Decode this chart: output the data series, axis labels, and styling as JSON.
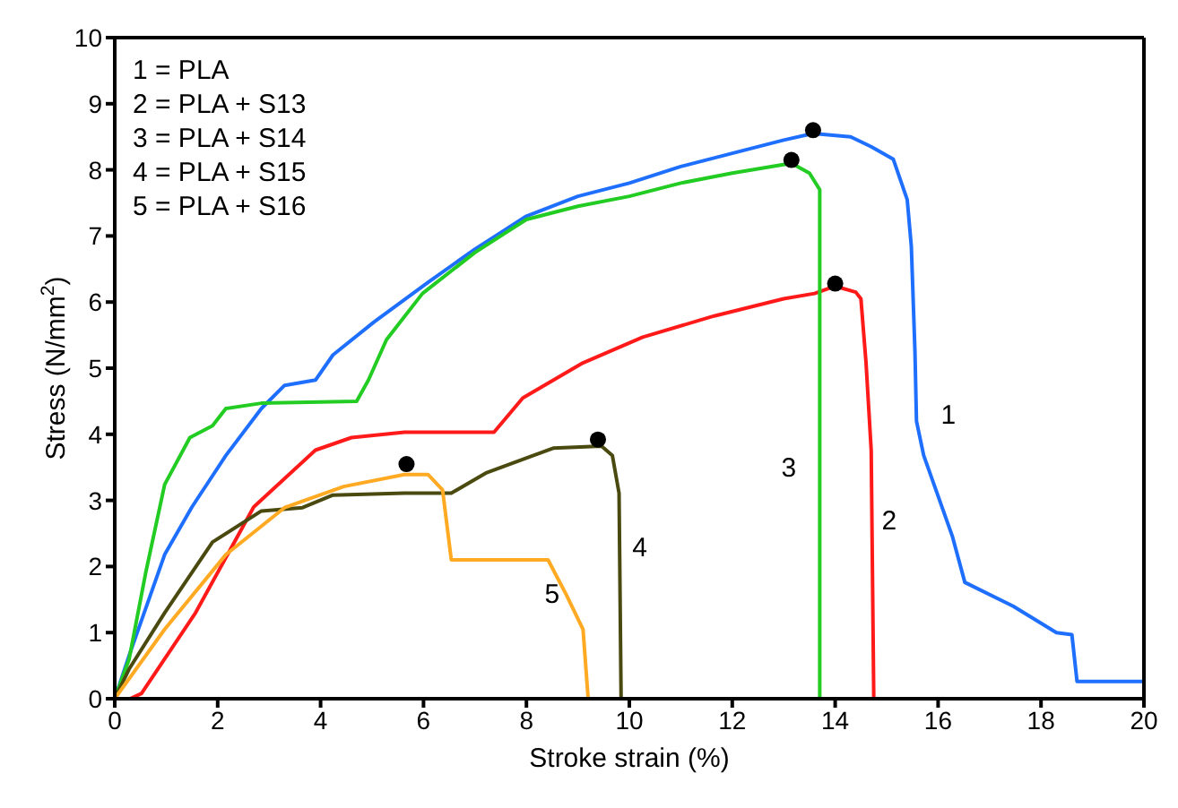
{
  "chart_data": {
    "type": "line",
    "xlabel": "Stroke strain (%)",
    "ylabel": "Stress (N/mm$^{2}$)",
    "xlim": [
      0,
      20
    ],
    "xticks": [
      0,
      2,
      4,
      6,
      8,
      10,
      12,
      14,
      16,
      18,
      20
    ],
    "ylim": [
      0,
      10
    ],
    "yticks": [
      0,
      1,
      2,
      3,
      4,
      5,
      6,
      7,
      8,
      9,
      10
    ],
    "grid": false,
    "marker": "none",
    "line_style": "solid",
    "annotations": [
      "1 = PLA",
      "2 = PLA + S13",
      "3 = PLA + S14",
      "4 = PLA + S15",
      "5 = PLA + S16"
    ],
    "series": [
      {
        "name": "1",
        "color": "#1f6fff",
        "x": [
          0,
          0.3,
          0.97,
          1.5,
          2.16,
          2.85,
          3.3,
          3.9,
          4.24,
          5.04,
          6.09,
          7,
          8,
          9,
          10,
          11,
          12,
          13,
          13.57,
          14.3,
          14.7,
          15.13,
          15.4,
          15.48,
          15.55,
          15.58,
          15.72,
          16.28,
          16.52,
          17.46,
          18.3,
          18.6,
          18.7,
          20
        ],
        "values": [
          0,
          0.7,
          2.18,
          2.9,
          3.68,
          4.39,
          4.74,
          4.82,
          5.2,
          5.7,
          6.3,
          6.8,
          7.3,
          7.6,
          7.8,
          8.05,
          8.25,
          8.45,
          8.55,
          8.5,
          8.35,
          8.16,
          7.55,
          6.84,
          5.26,
          4.2,
          3.68,
          2.45,
          1.76,
          1.4,
          1.0,
          0.97,
          0.26,
          0.26
        ]
      },
      {
        "name": "2",
        "color": "#ff1a1a",
        "x": [
          0.3,
          0.52,
          1.57,
          2.7,
          3.9,
          4.6,
          5.63,
          7.37,
          7.93,
          9.1,
          10.26,
          11.65,
          13,
          13.6,
          14,
          14.4,
          14.5,
          14.6,
          14.7,
          14.75
        ],
        "values": [
          0,
          0.08,
          1.3,
          2.9,
          3.76,
          3.95,
          4.03,
          4.03,
          4.55,
          5.08,
          5.47,
          5.79,
          6.05,
          6.13,
          6.24,
          6.15,
          6.05,
          5.08,
          3.76,
          0
        ]
      },
      {
        "name": "3",
        "color": "#22cc22",
        "x": [
          0,
          0.28,
          0.6,
          0.97,
          1.46,
          1.9,
          2.16,
          2.85,
          4.7,
          4.93,
          5.28,
          5.98,
          7,
          8,
          9,
          10,
          11,
          12,
          13.15,
          13.5,
          13.7,
          13.7
        ],
        "values": [
          0,
          0.6,
          1.9,
          3.24,
          3.95,
          4.13,
          4.39,
          4.47,
          4.5,
          4.82,
          5.43,
          6.13,
          6.75,
          7.25,
          7.45,
          7.6,
          7.8,
          7.95,
          8.1,
          7.95,
          7.7,
          0
        ]
      },
      {
        "name": "4",
        "color": "#4a4a10",
        "x": [
          0,
          0.28,
          0.97,
          1.9,
          2.85,
          3.65,
          4.24,
          5.63,
          6.54,
          7.23,
          8.52,
          9.46,
          9.67,
          9.8,
          9.84
        ],
        "values": [
          0,
          0.45,
          1.3,
          2.37,
          2.84,
          2.89,
          3.08,
          3.11,
          3.11,
          3.42,
          3.79,
          3.82,
          3.68,
          3.11,
          0
        ]
      },
      {
        "name": "5",
        "color": "#ffaa22",
        "x": [
          0,
          0.97,
          2.16,
          3.3,
          4.45,
          5.63,
          6.09,
          6.37,
          6.54,
          8.42,
          8.77,
          9.1,
          9.2
        ],
        "values": [
          0,
          1.05,
          2.18,
          2.89,
          3.21,
          3.39,
          3.39,
          3.16,
          2.1,
          2.1,
          1.58,
          1.05,
          0
        ]
      },
      {
        "type": "scatter",
        "color": "#000000",
        "marker": "circle",
        "x": [
          13.57,
          14.0,
          13.15,
          9.39,
          5.67
        ],
        "values": [
          8.6,
          6.28,
          8.15,
          3.92,
          3.55
        ]
      }
    ]
  }
}
